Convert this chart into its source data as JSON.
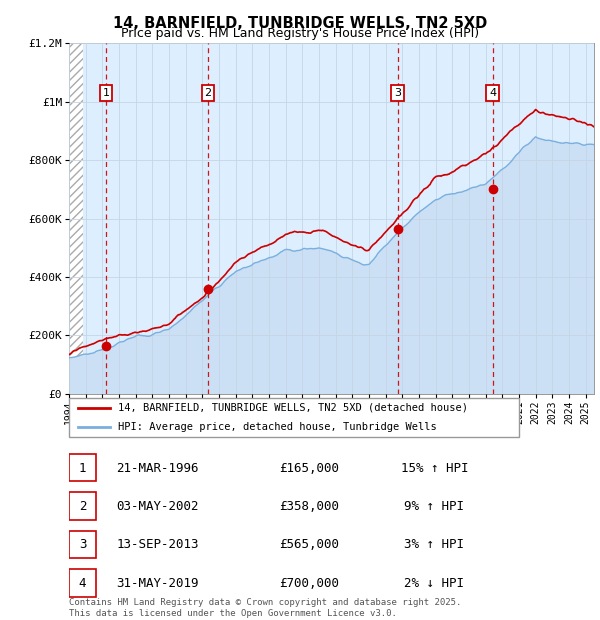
{
  "title": "14, BARNFIELD, TUNBRIDGE WELLS, TN2 5XD",
  "subtitle": "Price paid vs. HM Land Registry's House Price Index (HPI)",
  "y_ticks": [
    0,
    200000,
    400000,
    600000,
    800000,
    1000000,
    1200000
  ],
  "y_tick_labels": [
    "£0",
    "£200K",
    "£400K",
    "£600K",
    "£800K",
    "£1M",
    "£1.2M"
  ],
  "sales": [
    {
      "year": 1996.22,
      "price": 165000,
      "label": "1"
    },
    {
      "year": 2002.34,
      "price": 358000,
      "label": "2"
    },
    {
      "year": 2013.71,
      "price": 565000,
      "label": "3"
    },
    {
      "year": 2019.42,
      "price": 700000,
      "label": "4"
    }
  ],
  "sale_color": "#cc0000",
  "hpi_fill_color": "#cce0f5",
  "hpi_line_color": "#7aafde",
  "actual_line_color": "#cc0000",
  "grid_color": "#c0c0c0",
  "legend_entries": [
    "14, BARNFIELD, TUNBRIDGE WELLS, TN2 5XD (detached house)",
    "HPI: Average price, detached house, Tunbridge Wells"
  ],
  "table_rows": [
    {
      "num": "1",
      "date": "21-MAR-1996",
      "price": "£165,000",
      "hpi": "15% ↑ HPI"
    },
    {
      "num": "2",
      "date": "03-MAY-2002",
      "price": "£358,000",
      "hpi": "9% ↑ HPI"
    },
    {
      "num": "3",
      "date": "13-SEP-2013",
      "price": "£565,000",
      "hpi": "3% ↑ HPI"
    },
    {
      "num": "4",
      "date": "31-MAY-2019",
      "price": "£700,000",
      "hpi": "2% ↓ HPI"
    }
  ],
  "footnote": "Contains HM Land Registry data © Crown copyright and database right 2025.\nThis data is licensed under the Open Government Licence v3.0."
}
